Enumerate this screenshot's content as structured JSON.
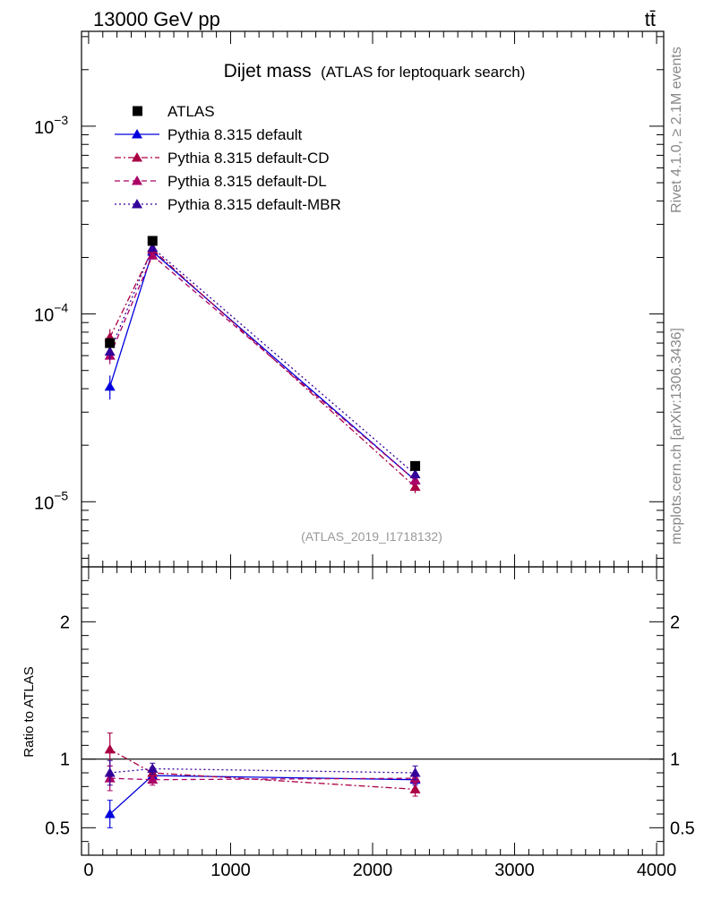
{
  "header": {
    "left": "13000 GeV pp",
    "right": "tt̄"
  },
  "side_labels": {
    "rivet": "Rivet 4.1.0, ≥ 2.1M events",
    "source": "mcplots.cern.ch [arXiv:1306.3436]"
  },
  "colors": {
    "atlas": "#000000",
    "default": "#0000dd",
    "cd": "#aa0044",
    "dl": "#aa0066",
    "mbr": "#330099"
  },
  "chart_data": {
    "type": "line",
    "title": "Dijet mass",
    "subtitle": "(ATLAS for leptoquark search)",
    "watermark": "(ATLAS_2019_I1718132)",
    "xlim": [
      -50,
      4050
    ],
    "x_ticks": [
      0,
      1000,
      2000,
      3000,
      4000
    ],
    "x_tick_labels": [
      "0",
      "1000",
      "2000",
      "3000",
      "4000"
    ],
    "main": {
      "yscale": "log",
      "ylim": [
        4.5e-06,
        0.0032
      ],
      "y_ticks": [
        {
          "value": 1e-05,
          "base": "10",
          "exp": "−5"
        },
        {
          "value": 0.0001,
          "base": "10",
          "exp": "−4"
        },
        {
          "value": 0.001,
          "base": "10",
          "exp": "−3"
        }
      ]
    },
    "ratio": {
      "ylabel": "Ratio to ATLAS",
      "ylim": [
        0.3,
        2.4
      ],
      "y_ticks": [
        0.5,
        1,
        2
      ],
      "y_tick_labels": [
        "0.5",
        "1",
        "2"
      ],
      "reference": 1
    },
    "x": [
      150,
      450,
      2300
    ],
    "data": {
      "name": "ATLAS",
      "values": [
        7e-05,
        0.000245,
        1.55e-05
      ]
    },
    "series": [
      {
        "name": "Pythia 8.315 default",
        "key": "default",
        "dash": "solid",
        "values": [
          4.1e-05,
          0.000215,
          1.3e-05
        ],
        "errors": [
          6e-06,
          1e-05,
          9e-07
        ],
        "ratio": [
          0.6,
          0.88,
          0.85
        ],
        "ratio_errors": [
          0.1,
          0.04,
          0.04
        ]
      },
      {
        "name": "Pythia 8.315 default-CD",
        "key": "cd",
        "dash": "dashdot",
        "values": [
          7.5e-05,
          0.00022,
          1.2e-05
        ],
        "errors": [
          8e-06,
          1e-05,
          9e-07
        ],
        "ratio": [
          1.07,
          0.9,
          0.78
        ],
        "ratio_errors": [
          0.12,
          0.04,
          0.05
        ]
      },
      {
        "name": "Pythia 8.315 default-DL",
        "key": "dl",
        "dash": "dashed",
        "values": [
          6e-05,
          0.000205,
          1.3e-05
        ],
        "errors": [
          6e-06,
          1e-05,
          9e-07
        ],
        "ratio": [
          0.86,
          0.85,
          0.86
        ],
        "ratio_errors": [
          0.09,
          0.04,
          0.04
        ]
      },
      {
        "name": "Pythia 8.315 default-MBR",
        "key": "mbr",
        "dash": "dotted",
        "values": [
          6.3e-05,
          0.000225,
          1.4e-05
        ],
        "errors": [
          6e-06,
          1e-05,
          9e-07
        ],
        "ratio": [
          0.9,
          0.93,
          0.9
        ],
        "ratio_errors": [
          0.09,
          0.04,
          0.05
        ]
      }
    ]
  }
}
